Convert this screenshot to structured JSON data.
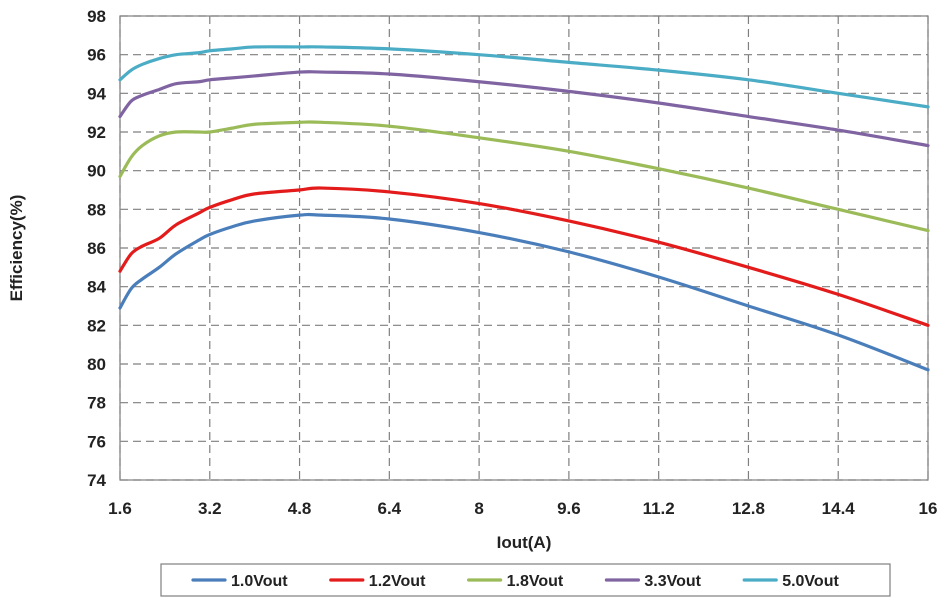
{
  "chart_data": {
    "type": "line",
    "title": "",
    "xlabel": "Iout(A)",
    "ylabel": "Efficiency(%)",
    "xlim": [
      1.6,
      16
    ],
    "ylim": [
      74,
      98
    ],
    "xticks": [
      "1.6",
      "3.2",
      "4.8",
      "6.4",
      "8",
      "9.6",
      "11.2",
      "12.8",
      "14.4",
      "16"
    ],
    "yticks": [
      "74",
      "76",
      "78",
      "80",
      "82",
      "84",
      "86",
      "88",
      "90",
      "92",
      "94",
      "96",
      "98"
    ],
    "grid": true,
    "legend_position": "bottom",
    "series": [
      {
        "name": "1.0Vout",
        "color": "#4a7ebb",
        "x": [
          1.6,
          1.8,
          2.0,
          2.3,
          2.6,
          3.0,
          3.2,
          3.6,
          4.0,
          4.8,
          5.2,
          6.4,
          8.0,
          9.6,
          11.2,
          12.8,
          14.4,
          16.0
        ],
        "y": [
          82.9,
          83.9,
          84.4,
          85.0,
          85.7,
          86.4,
          86.7,
          87.1,
          87.4,
          87.7,
          87.7,
          87.5,
          86.8,
          85.8,
          84.5,
          83.0,
          81.5,
          79.7
        ]
      },
      {
        "name": "1.2Vout",
        "color": "#e31b1b",
        "x": [
          1.6,
          1.8,
          2.0,
          2.3,
          2.6,
          3.0,
          3.2,
          3.6,
          4.0,
          4.8,
          5.2,
          6.4,
          8.0,
          9.6,
          11.2,
          12.8,
          14.4,
          16.0
        ],
        "y": [
          84.8,
          85.7,
          86.1,
          86.5,
          87.2,
          87.8,
          88.1,
          88.5,
          88.8,
          89.0,
          89.1,
          88.9,
          88.3,
          87.4,
          86.3,
          85.0,
          83.6,
          82.0
        ]
      },
      {
        "name": "1.8Vout",
        "color": "#9bbb59",
        "x": [
          1.6,
          1.8,
          2.0,
          2.3,
          2.6,
          3.0,
          3.2,
          3.6,
          4.0,
          4.8,
          5.2,
          6.4,
          8.0,
          9.6,
          11.2,
          12.8,
          14.4,
          16.0
        ],
        "y": [
          89.7,
          90.7,
          91.3,
          91.8,
          92.0,
          92.0,
          92.0,
          92.2,
          92.4,
          92.5,
          92.5,
          92.3,
          91.7,
          91.0,
          90.1,
          89.1,
          88.0,
          86.9
        ]
      },
      {
        "name": "3.3Vout",
        "color": "#8064a2",
        "x": [
          1.6,
          1.8,
          2.0,
          2.3,
          2.6,
          3.0,
          3.2,
          3.6,
          4.0,
          4.8,
          5.2,
          6.4,
          8.0,
          9.6,
          11.2,
          12.8,
          14.4,
          16.0
        ],
        "y": [
          92.8,
          93.6,
          93.9,
          94.2,
          94.5,
          94.6,
          94.7,
          94.8,
          94.9,
          95.1,
          95.1,
          95.0,
          94.6,
          94.1,
          93.5,
          92.8,
          92.1,
          91.3
        ]
      },
      {
        "name": "5.0Vout",
        "color": "#4bacc6",
        "x": [
          1.6,
          1.8,
          2.0,
          2.3,
          2.6,
          3.0,
          3.2,
          3.6,
          4.0,
          4.8,
          5.2,
          6.4,
          8.0,
          9.6,
          11.2,
          12.8,
          14.4,
          16.0
        ],
        "y": [
          94.7,
          95.2,
          95.5,
          95.8,
          96.0,
          96.1,
          96.2,
          96.3,
          96.4,
          96.4,
          96.4,
          96.3,
          96.0,
          95.6,
          95.2,
          94.7,
          94.0,
          93.3
        ]
      }
    ]
  }
}
